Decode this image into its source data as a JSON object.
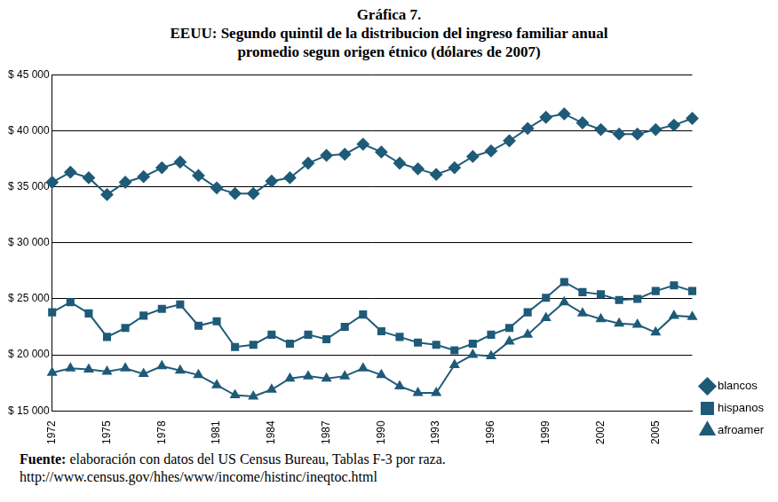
{
  "chart_data": {
    "type": "line",
    "title": "Gráfica 7.",
    "subtitle": [
      "EEUU: Segundo quintil de la distribucion del ingreso familiar anual",
      "promedio segun origen étnico (dólares de 2007)"
    ],
    "source_label": "Fuente:",
    "source": "elaboración con datos del US Census Bureau, Tablas F-3 por raza.",
    "source_url": "http://www.census.gov/hhes/www/income/histinc/ineqtoc.html",
    "categories": [
      "1972",
      null,
      null,
      "1975",
      null,
      null,
      "1978",
      null,
      null,
      "1981",
      null,
      null,
      "1984",
      null,
      null,
      "1987",
      null,
      null,
      "1990",
      null,
      null,
      "1993",
      null,
      null,
      "1996",
      null,
      null,
      "1999",
      null,
      null,
      "2002",
      null,
      null,
      "2005",
      null,
      null
    ],
    "series": [
      {
        "name": "blancos",
        "color": "#1e5b78",
        "marker": "diamond",
        "line_style": "solid",
        "values": [
          35400,
          36300,
          35800,
          34300,
          35400,
          35900,
          36700,
          37200,
          36000,
          34900,
          34400,
          34400,
          35500,
          35800,
          37100,
          37800,
          37900,
          38800,
          38100,
          37100,
          36600,
          36100,
          36700,
          37700,
          38200,
          39100,
          40200,
          41200,
          41500,
          40700,
          40100,
          39700,
          39700,
          40100,
          40500,
          41100
        ]
      },
      {
        "name": "hispanos",
        "color": "#1e5b78",
        "marker": "square",
        "line_style": "solid",
        "values": [
          23800,
          24700,
          23700,
          21600,
          22400,
          23500,
          24100,
          24500,
          22600,
          23000,
          20700,
          20900,
          21800,
          21000,
          21800,
          21400,
          22500,
          23600,
          22100,
          21600,
          21100,
          20900,
          20400,
          21000,
          21800,
          22400,
          23800,
          25100,
          26500,
          25600,
          25400,
          24900,
          25000,
          25700,
          26200,
          25700
        ]
      },
      {
        "name": "afroamer",
        "color": "#1e5b78",
        "marker": "triangle",
        "line_style": "solid",
        "values": [
          18400,
          18800,
          18700,
          18500,
          18800,
          18300,
          19000,
          18600,
          18200,
          17300,
          16400,
          16300,
          16900,
          17900,
          18100,
          17900,
          18100,
          18800,
          18200,
          17200,
          16600,
          16600,
          19100,
          20000,
          19900,
          21200,
          21800,
          23300,
          24700,
          23700,
          23200,
          22800,
          22700,
          22000,
          23500,
          23400
        ]
      }
    ],
    "ylim": [
      15000,
      45000
    ],
    "yticks": [
      {
        "value": 15000,
        "label": "$ 15 000"
      },
      {
        "value": 20000,
        "label": "$ 20 000"
      },
      {
        "value": 25000,
        "label": "$ 25 000"
      },
      {
        "value": 30000,
        "label": "$ 30 000"
      },
      {
        "value": 35000,
        "label": "$ 35 000"
      },
      {
        "value": 40000,
        "label": "$ 40 000"
      },
      {
        "value": 45000,
        "label": "$ 45 000"
      }
    ],
    "grid": true,
    "legend": "right"
  }
}
